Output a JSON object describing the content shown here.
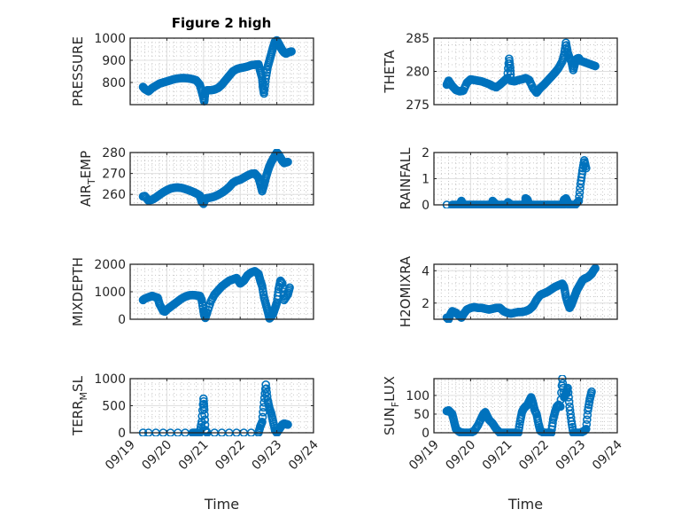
{
  "figure_title": "Figure 2 high",
  "marker_color": "#0072bd",
  "chart_data": [
    {
      "type": "scatter",
      "ylabel": "PRESSURE",
      "title": "Figure 2 high",
      "xlabel": "",
      "xlim": [
        0,
        5
      ],
      "ylim": [
        700,
        1000
      ],
      "yticks": [
        800,
        900,
        1000
      ],
      "xticks": [
        "09/19",
        "09/20",
        "09/21",
        "09/22",
        "09/23",
        "09/24"
      ],
      "show_xticklabels": false,
      "grid": true,
      "x": [
        0.35,
        0.4,
        0.5,
        0.6,
        0.7,
        0.8,
        0.9,
        1.0,
        1.1,
        1.2,
        1.3,
        1.4,
        1.5,
        1.6,
        1.7,
        1.8,
        1.9,
        1.95,
        2.0,
        2.02,
        2.05,
        2.1,
        2.2,
        2.3,
        2.4,
        2.5,
        2.6,
        2.7,
        2.8,
        2.9,
        3.0,
        3.1,
        3.2,
        3.3,
        3.4,
        3.5,
        3.55,
        3.6,
        3.62,
        3.65,
        3.7,
        3.75,
        3.8,
        3.85,
        3.9,
        3.95,
        4.0,
        4.05,
        4.1,
        4.15,
        4.2,
        4.25,
        4.3,
        4.4
      ],
      "y": [
        780,
        770,
        760,
        775,
        785,
        795,
        800,
        805,
        810,
        815,
        818,
        820,
        820,
        818,
        815,
        810,
        790,
        760,
        730,
        715,
        760,
        765,
        765,
        768,
        775,
        790,
        810,
        830,
        850,
        860,
        865,
        868,
        872,
        878,
        880,
        882,
        850,
        820,
        780,
        750,
        820,
        870,
        900,
        930,
        960,
        985,
        990,
        975,
        960,
        945,
        935,
        930,
        935,
        940
      ]
    },
    {
      "type": "scatter",
      "ylabel": "THETA",
      "xlim": [
        0,
        5
      ],
      "ylim": [
        275,
        285
      ],
      "yticks": [
        275,
        280,
        285
      ],
      "xticks": [
        "09/19",
        "09/20",
        "09/21",
        "09/22",
        "09/23",
        "09/24"
      ],
      "show_xticklabels": false,
      "grid": true,
      "x": [
        0.35,
        0.4,
        0.5,
        0.6,
        0.7,
        0.8,
        0.9,
        1.0,
        1.1,
        1.2,
        1.3,
        1.4,
        1.5,
        1.6,
        1.7,
        1.8,
        1.9,
        2.0,
        2.05,
        2.08,
        2.1,
        2.2,
        2.3,
        2.4,
        2.5,
        2.6,
        2.7,
        2.8,
        2.9,
        3.0,
        3.1,
        3.2,
        3.3,
        3.4,
        3.5,
        3.55,
        3.6,
        3.65,
        3.7,
        3.75,
        3.8,
        3.85,
        3.9,
        3.95,
        4.0,
        4.1,
        4.2,
        4.3,
        4.4
      ],
      "y": [
        278,
        278.6,
        277.8,
        277.2,
        277,
        277.1,
        278.3,
        278.8,
        278.7,
        278.6,
        278.5,
        278.3,
        278.1,
        277.8,
        277.6,
        278,
        278.5,
        279,
        281.9,
        280.5,
        278.6,
        278.5,
        278.7,
        278.8,
        279,
        278.7,
        277.5,
        276.8,
        277.5,
        278,
        278.6,
        279.2,
        279.8,
        280.5,
        281.5,
        282.5,
        284.3,
        282.8,
        282,
        281.5,
        280.2,
        281.3,
        281.9,
        282,
        281.6,
        281.4,
        281.2,
        281,
        280.8
      ]
    },
    {
      "type": "scatter",
      "ylabel": "AIR_TEMP",
      "ylabel_display": [
        "AIR",
        "T",
        "EMP"
      ],
      "xlim": [
        0,
        5
      ],
      "ylim": [
        255,
        280
      ],
      "yticks": [
        260,
        270,
        280
      ],
      "xticks": [
        "09/19",
        "09/20",
        "09/21",
        "09/22",
        "09/23",
        "09/24"
      ],
      "show_xticklabels": false,
      "grid": true,
      "x": [
        0.35,
        0.4,
        0.5,
        0.6,
        0.7,
        0.8,
        0.9,
        1.0,
        1.1,
        1.2,
        1.3,
        1.4,
        1.5,
        1.6,
        1.7,
        1.8,
        1.9,
        1.95,
        2.0,
        2.05,
        2.1,
        2.2,
        2.3,
        2.4,
        2.5,
        2.6,
        2.7,
        2.8,
        2.9,
        3.0,
        3.1,
        3.2,
        3.3,
        3.4,
        3.5,
        3.55,
        3.6,
        3.65,
        3.7,
        3.75,
        3.8,
        3.85,
        3.9,
        3.95,
        4.0,
        4.05,
        4.1,
        4.15,
        4.2,
        4.3
      ],
      "y": [
        259,
        259.2,
        257,
        257.5,
        258.5,
        259.8,
        261,
        262,
        262.8,
        263.2,
        263.3,
        263.1,
        262.6,
        262,
        261.3,
        260.5,
        259.5,
        256.5,
        255.5,
        258,
        258.2,
        258.5,
        259,
        259.8,
        260.8,
        262,
        263.5,
        265.5,
        266.5,
        267,
        268,
        269,
        269.8,
        270,
        268,
        265,
        261.5,
        264.5,
        268,
        271,
        273.5,
        275.5,
        277,
        278.5,
        280,
        279,
        277.5,
        276,
        275,
        275.5
      ]
    },
    {
      "type": "scatter",
      "ylabel": "RAINFALL",
      "xlim": [
        0,
        5
      ],
      "ylim": [
        0,
        2
      ],
      "yticks": [
        0,
        1,
        2
      ],
      "xticks": [
        "09/19",
        "09/20",
        "09/21",
        "09/22",
        "09/23",
        "09/24"
      ],
      "show_xticklabels": false,
      "grid": true,
      "x": [
        0.35,
        0.5,
        0.6,
        0.7,
        0.8,
        0.9,
        1.0,
        1.1,
        1.2,
        1.3,
        1.4,
        1.5,
        1.6,
        1.7,
        1.8,
        1.9,
        2.0,
        2.1,
        2.2,
        2.3,
        2.4,
        2.5,
        2.6,
        2.7,
        2.8,
        2.9,
        3.0,
        3.1,
        3.2,
        3.3,
        3.4,
        3.5,
        3.6,
        3.7,
        3.8,
        3.85,
        3.95,
        4.0,
        4.05,
        4.1,
        4.15,
        0.75,
        1.6,
        2.02,
        2.5,
        2.55,
        3.55,
        3.6,
        3.65
      ],
      "y": [
        0,
        0,
        0,
        0,
        0,
        0,
        0,
        0,
        0,
        0,
        0,
        0,
        0,
        0,
        0,
        0,
        0,
        0,
        0,
        0,
        0,
        0,
        0,
        0,
        0,
        0,
        0,
        0,
        0,
        0,
        0,
        0,
        0,
        0,
        0,
        0,
        0.15,
        0.8,
        1.3,
        1.7,
        1.4,
        0.15,
        0.15,
        0.1,
        0.25,
        0.2,
        0.2,
        0.25,
        0.1
      ]
    },
    {
      "type": "scatter",
      "ylabel": "MIXDEPTH",
      "xlim": [
        0,
        5
      ],
      "ylim": [
        0,
        2000
      ],
      "yticks": [
        0,
        1000,
        2000
      ],
      "xticks": [
        "09/19",
        "09/20",
        "09/21",
        "09/22",
        "09/23",
        "09/24"
      ],
      "show_xticklabels": false,
      "grid": true,
      "x": [
        0.35,
        0.4,
        0.5,
        0.6,
        0.7,
        0.75,
        0.8,
        0.9,
        0.95,
        1.0,
        1.1,
        1.2,
        1.3,
        1.4,
        1.5,
        1.6,
        1.7,
        1.8,
        1.9,
        1.95,
        2.0,
        2.02,
        2.05,
        2.1,
        2.2,
        2.3,
        2.4,
        2.5,
        2.6,
        2.7,
        2.8,
        2.9,
        3.0,
        3.1,
        3.2,
        3.3,
        3.4,
        3.5,
        3.55,
        3.6,
        3.65,
        3.7,
        3.75,
        3.8,
        3.85,
        3.9,
        3.95,
        4.0,
        4.05,
        4.1,
        4.15,
        4.2,
        4.3,
        4.35
      ],
      "y": [
        700,
        750,
        800,
        850,
        800,
        780,
        550,
        300,
        280,
        350,
        450,
        550,
        650,
        750,
        820,
        870,
        880,
        870,
        850,
        700,
        300,
        150,
        50,
        250,
        650,
        900,
        1050,
        1200,
        1300,
        1400,
        1450,
        1500,
        1300,
        1400,
        1600,
        1700,
        1750,
        1650,
        1400,
        1200,
        800,
        550,
        300,
        30,
        100,
        200,
        400,
        600,
        1100,
        1400,
        1300,
        700,
        900,
        1150
      ]
    },
    {
      "type": "scatter",
      "ylabel": "H2OMIXRA",
      "xlim": [
        0,
        5
      ],
      "ylim": [
        1,
        4.4
      ],
      "yticks": [
        2,
        4
      ],
      "xticks": [
        "09/19",
        "09/20",
        "09/21",
        "09/22",
        "09/23",
        "09/24"
      ],
      "show_xticklabels": false,
      "grid": true,
      "x": [
        0.35,
        0.4,
        0.45,
        0.5,
        0.6,
        0.7,
        0.75,
        0.8,
        0.9,
        1.0,
        1.1,
        1.2,
        1.3,
        1.4,
        1.5,
        1.6,
        1.7,
        1.8,
        1.9,
        2.0,
        2.1,
        2.2,
        2.3,
        2.4,
        2.5,
        2.6,
        2.7,
        2.8,
        2.9,
        3.0,
        3.1,
        3.2,
        3.3,
        3.4,
        3.5,
        3.55,
        3.6,
        3.65,
        3.7,
        3.75,
        3.8,
        3.85,
        3.9,
        3.95,
        4.0,
        4.05,
        4.1,
        4.15,
        4.2,
        4.25,
        4.3,
        4.35,
        4.4
      ],
      "y": [
        1.1,
        1.0,
        1.3,
        1.5,
        1.4,
        1.2,
        1.1,
        1.3,
        1.6,
        1.7,
        1.75,
        1.7,
        1.7,
        1.65,
        1.6,
        1.65,
        1.7,
        1.7,
        1.5,
        1.4,
        1.35,
        1.4,
        1.45,
        1.45,
        1.5,
        1.6,
        1.8,
        2.2,
        2.5,
        2.6,
        2.7,
        2.85,
        3.0,
        3.1,
        3.2,
        3.0,
        2.4,
        2.0,
        1.7,
        1.9,
        2.2,
        2.5,
        2.8,
        3.0,
        3.2,
        3.4,
        3.5,
        3.55,
        3.6,
        3.7,
        3.8,
        4.0,
        4.15
      ]
    },
    {
      "type": "scatter",
      "ylabel": "TERR_MSL",
      "ylabel_display": [
        "TERR",
        "M",
        "SL"
      ],
      "xlim": [
        0,
        5
      ],
      "ylim": [
        0,
        1000
      ],
      "yticks": [
        0,
        500,
        1000
      ],
      "xticks": [
        "09/19",
        "09/20",
        "09/21",
        "09/22",
        "09/23",
        "09/24"
      ],
      "xlabel": "Time",
      "grid": true,
      "x": [
        0.35,
        0.5,
        0.7,
        0.9,
        1.1,
        1.3,
        1.5,
        1.7,
        1.8,
        1.9,
        1.95,
        2.0,
        2.02,
        2.05,
        2.1,
        2.3,
        2.5,
        2.7,
        2.9,
        3.1,
        3.3,
        3.5,
        3.55,
        3.6,
        3.65,
        3.7,
        3.75,
        3.8,
        3.85,
        3.9,
        3.95,
        4.0,
        4.05,
        4.1,
        4.15,
        4.2,
        4.25,
        4.3
      ],
      "y": [
        0,
        0,
        0,
        0,
        0,
        0,
        0,
        0,
        0,
        0,
        200,
        630,
        430,
        50,
        0,
        0,
        0,
        0,
        0,
        0,
        0,
        0,
        120,
        200,
        560,
        890,
        600,
        450,
        350,
        200,
        50,
        0,
        50,
        100,
        150,
        170,
        160,
        150
      ]
    },
    {
      "type": "scatter",
      "ylabel": "SUN_FLUX",
      "ylabel_display": [
        "SUN",
        "F",
        "LUX"
      ],
      "xlim": [
        0,
        5
      ],
      "ylim": [
        0,
        145
      ],
      "yticks": [
        0,
        50,
        100
      ],
      "xticks": [
        "09/19",
        "09/20",
        "09/21",
        "09/22",
        "09/23",
        "09/24"
      ],
      "xlabel": "Time",
      "grid": true,
      "x": [
        0.35,
        0.4,
        0.45,
        0.5,
        0.55,
        0.6,
        0.7,
        0.8,
        0.9,
        1.0,
        1.1,
        1.2,
        1.3,
        1.35,
        1.4,
        1.45,
        1.5,
        1.6,
        1.7,
        1.8,
        1.9,
        2.0,
        2.1,
        2.2,
        2.3,
        2.35,
        2.4,
        2.45,
        2.5,
        2.55,
        2.6,
        2.65,
        2.7,
        2.75,
        2.8,
        2.85,
        2.9,
        3.0,
        3.1,
        3.2,
        3.25,
        3.3,
        3.35,
        3.4,
        3.45,
        3.5,
        3.55,
        3.6,
        3.65,
        3.7,
        3.75,
        3.8,
        3.85,
        3.9,
        4.0,
        4.1,
        4.15,
        4.2,
        4.25,
        4.3
      ],
      "y": [
        58,
        60,
        55,
        50,
        30,
        10,
        2,
        0,
        0,
        0,
        5,
        20,
        40,
        50,
        55,
        45,
        35,
        25,
        10,
        0,
        0,
        0,
        0,
        0,
        0,
        30,
        55,
        65,
        70,
        75,
        85,
        95,
        80,
        60,
        50,
        25,
        5,
        0,
        0,
        0,
        35,
        55,
        70,
        75,
        70,
        145,
        95,
        105,
        120,
        70,
        30,
        0,
        0,
        0,
        0,
        5,
        10,
        60,
        90,
        110
      ]
    }
  ]
}
